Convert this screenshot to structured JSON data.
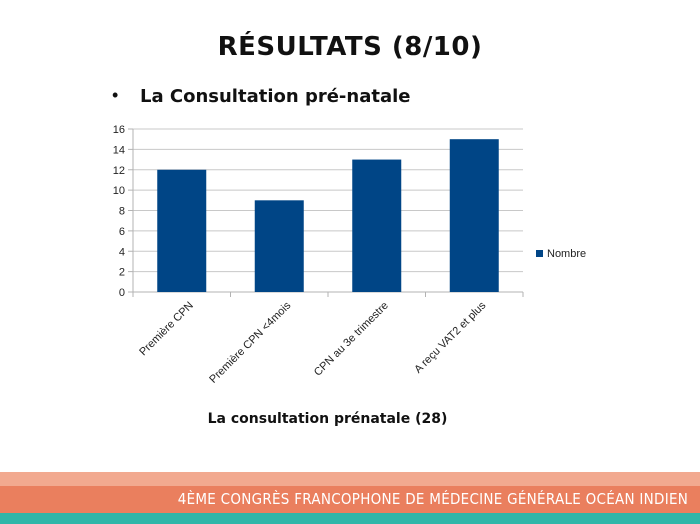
{
  "slide": {
    "title": "RÉSULTATS (8/10)",
    "bullet": "La Consultation pré-natale",
    "caption": "La consultation prénatale (28)",
    "footer": "4ÈME CONGRÈS FRANCOPHONE DE MÉDECINE GÉNÉRALE OCÉAN INDIEN"
  },
  "chart_data": {
    "type": "bar",
    "categories": [
      "Première CPN",
      "Première CPN <4mois",
      "CPN au 3e trimestre",
      "A reçu VAT2 et plus"
    ],
    "series": [
      {
        "name": "Nombre",
        "values": [
          12,
          9,
          13,
          15
        ]
      }
    ],
    "ylim": [
      0,
      16
    ],
    "yticks": [
      0,
      2,
      4,
      6,
      8,
      10,
      12,
      14,
      16
    ],
    "grid": true,
    "legend": "right",
    "bar_color": "#004586"
  }
}
